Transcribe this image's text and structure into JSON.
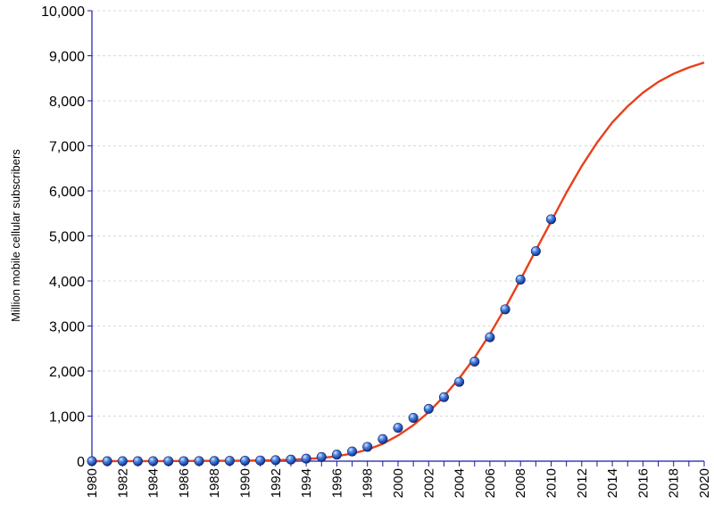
{
  "chart_data": {
    "type": "scatter",
    "title": "",
    "xlabel": "",
    "ylabel": "Million mobile cellular subscribers",
    "xlim": [
      1980,
      2020
    ],
    "ylim": [
      0,
      10000
    ],
    "grid": true,
    "y_ticks": [
      {
        "value": 0,
        "label": "0"
      },
      {
        "value": 1000,
        "label": "1,000"
      },
      {
        "value": 2000,
        "label": "2,000"
      },
      {
        "value": 3000,
        "label": "3,000"
      },
      {
        "value": 4000,
        "label": "4,000"
      },
      {
        "value": 5000,
        "label": "5,000"
      },
      {
        "value": 6000,
        "label": "6,000"
      },
      {
        "value": 7000,
        "label": "7,000"
      },
      {
        "value": 8000,
        "label": "8,000"
      },
      {
        "value": 9000,
        "label": "9,000"
      },
      {
        "value": 10000,
        "label": "10,000"
      }
    ],
    "x_ticks": [
      {
        "value": 1980,
        "label": "1980"
      },
      {
        "value": 1982,
        "label": "1982"
      },
      {
        "value": 1984,
        "label": "1984"
      },
      {
        "value": 1986,
        "label": "1986"
      },
      {
        "value": 1988,
        "label": "1988"
      },
      {
        "value": 1990,
        "label": "1990"
      },
      {
        "value": 1992,
        "label": "1992"
      },
      {
        "value": 1994,
        "label": "1994"
      },
      {
        "value": 1996,
        "label": "1996"
      },
      {
        "value": 1998,
        "label": "1998"
      },
      {
        "value": 2000,
        "label": "2000"
      },
      {
        "value": 2002,
        "label": "2002"
      },
      {
        "value": 2004,
        "label": "2004"
      },
      {
        "value": 2006,
        "label": "2006"
      },
      {
        "value": 2008,
        "label": "2008"
      },
      {
        "value": 2010,
        "label": "2010"
      },
      {
        "value": 2012,
        "label": "2012"
      },
      {
        "value": 2014,
        "label": "2014"
      },
      {
        "value": 2016,
        "label": "2016"
      },
      {
        "value": 2018,
        "label": "2018"
      },
      {
        "value": 2020,
        "label": "2020"
      }
    ],
    "series": [
      {
        "kind": "points",
        "color": "#2f5fd0",
        "x": [
          1980,
          1981,
          1982,
          1983,
          1984,
          1985,
          1986,
          1987,
          1988,
          1989,
          1990,
          1991,
          1992,
          1993,
          1994,
          1995,
          1996,
          1997,
          1998,
          1999,
          2000,
          2001,
          2002,
          2003,
          2004,
          2005,
          2006,
          2007,
          2008,
          2009,
          2010
        ],
        "y": [
          0,
          0,
          0,
          0,
          0,
          1,
          1,
          3,
          4,
          7,
          11,
          16,
          23,
          34,
          56,
          91,
          145,
          215,
          318,
          490,
          740,
          961,
          1160,
          1420,
          1760,
          2210,
          2750,
          3370,
          4030,
          4660,
          5370
        ]
      },
      {
        "kind": "line",
        "color": "#e8401a",
        "x": [
          1980,
          1982,
          1984,
          1986,
          1988,
          1990,
          1991,
          1992,
          1993,
          1994,
          1995,
          1996,
          1997,
          1998,
          1999,
          2000,
          2001,
          2002,
          2003,
          2004,
          2005,
          2006,
          2007,
          2008,
          2009,
          2010,
          2011,
          2012,
          2013,
          2014,
          2015,
          2016,
          2017,
          2018,
          2019,
          2020
        ],
        "y": [
          0,
          1,
          2,
          4,
          7,
          12,
          16,
          22,
          32,
          48,
          72,
          110,
          168,
          255,
          385,
          570,
          800,
          1090,
          1440,
          1840,
          2300,
          2820,
          3400,
          4030,
          4680,
          5320,
          5960,
          6550,
          7070,
          7520,
          7880,
          8180,
          8420,
          8600,
          8740,
          8850
        ]
      }
    ]
  }
}
